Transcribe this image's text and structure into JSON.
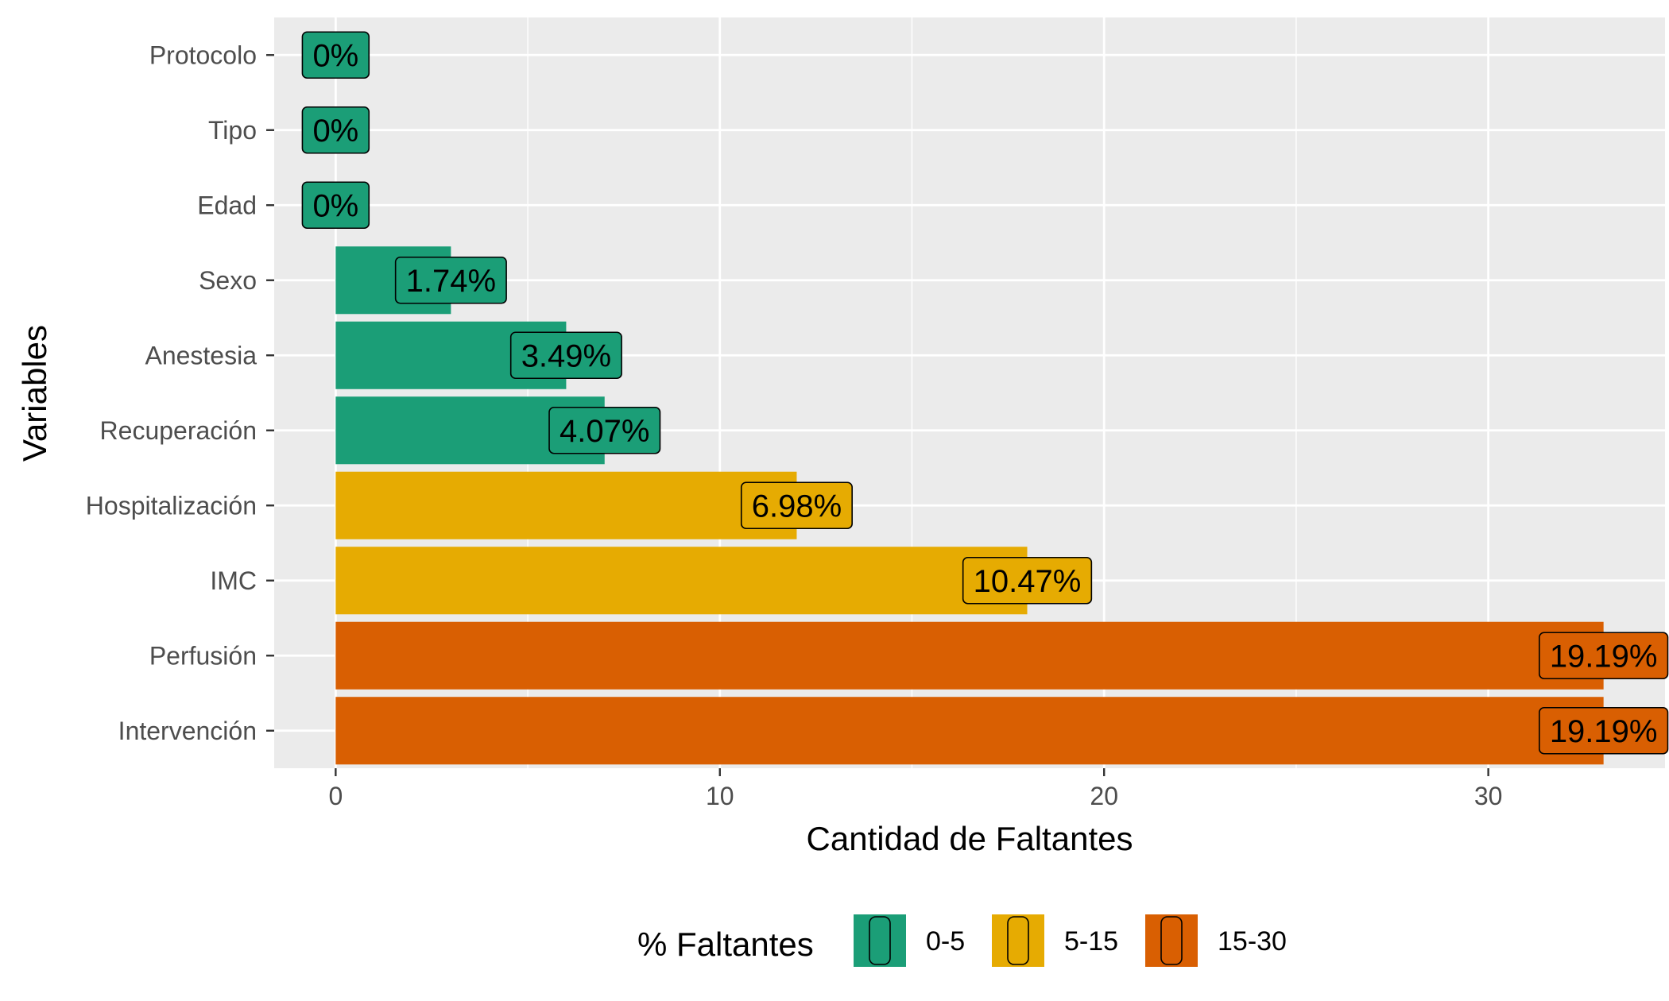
{
  "chart_data": {
    "type": "bar",
    "orientation": "horizontal",
    "categories": [
      "Protocolo",
      "Tipo",
      "Edad",
      "Sexo",
      "Anestesia",
      "Recuperación",
      "Hospitalización",
      "IMC",
      "Perfusión",
      "Intervención"
    ],
    "values": [
      0,
      0,
      0,
      3,
      6,
      7,
      12,
      18,
      33,
      33
    ],
    "data_labels": [
      "0%",
      "0%",
      "0%",
      "1.74%",
      "3.49%",
      "4.07%",
      "6.98%",
      "10.47%",
      "19.19%",
      "19.19%"
    ],
    "groups": [
      "0-5",
      "0-5",
      "0-5",
      "0-5",
      "0-5",
      "0-5",
      "5-15",
      "5-15",
      "15-30",
      "15-30"
    ],
    "xlabel": "Cantidad de Faltantes",
    "ylabel": "Variables",
    "xlim": [
      -1.6,
      34.6
    ],
    "x_ticks": [
      0,
      10,
      20,
      30
    ],
    "x_tick_labels": [
      "0",
      "10",
      "20",
      "30"
    ],
    "grid": true,
    "background_color": "#EBEBEB",
    "legend": {
      "title": "% Faltantes",
      "position": "bottom",
      "items": [
        {
          "label": "0-5",
          "color": "#1B9E77"
        },
        {
          "label": "5-15",
          "color": "#E6AB02"
        },
        {
          "label": "15-30",
          "color": "#D95F02"
        }
      ]
    }
  }
}
